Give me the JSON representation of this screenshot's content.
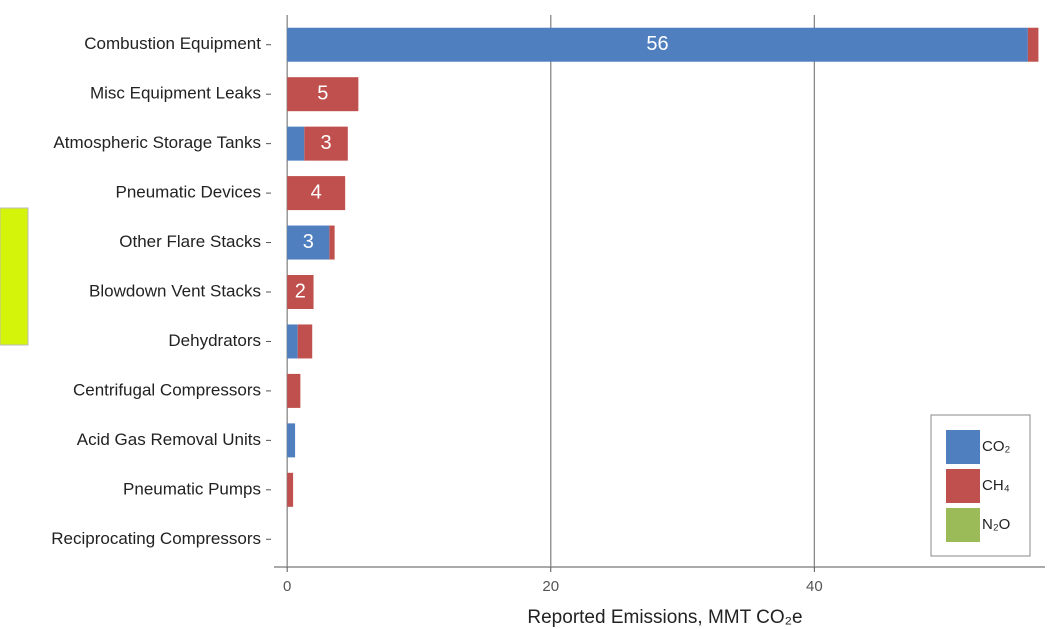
{
  "chart_data": {
    "type": "stacked_barh",
    "categories": [
      "Combustion Equipment",
      "Misc Equipment Leaks",
      "Atmospheric Storage Tanks",
      "Pneumatic Devices",
      "Other Flare Stacks",
      "Blowdown Vent Stacks",
      "Dehydrators",
      "Centrifugal Compressors",
      "Acid Gas Removal Units",
      "Pneumatic Pumps",
      "Reciprocating Compressors"
    ],
    "series": [
      {
        "name": "CO₂",
        "color": "#4f7fbf",
        "values": [
          56.2,
          0,
          1.3,
          0,
          3.2,
          0,
          0.8,
          0,
          0.6,
          0,
          0
        ],
        "value_labels": [
          "56",
          null,
          null,
          null,
          "3",
          null,
          null,
          null,
          null,
          null,
          null
        ]
      },
      {
        "name": "CH₄",
        "color": "#c0504d",
        "values": [
          0.8,
          5.4,
          3.3,
          4.4,
          0.4,
          2.0,
          1.1,
          1.0,
          0,
          0.45,
          0
        ],
        "value_labels": [
          null,
          "5",
          "3",
          "4",
          null,
          "2",
          null,
          null,
          null,
          null,
          null
        ]
      },
      {
        "name": "N₂O",
        "color": "#9bbb59",
        "values": [
          0,
          0,
          0,
          0,
          0,
          0,
          0,
          0,
          0,
          0,
          0
        ]
      }
    ],
    "xlabel": "Reported Emissions, MMT CO₂e",
    "xlim": [
      -1,
      57.5
    ],
    "xticks": [
      0,
      20,
      40
    ],
    "grid": true,
    "legend": "lower right"
  }
}
